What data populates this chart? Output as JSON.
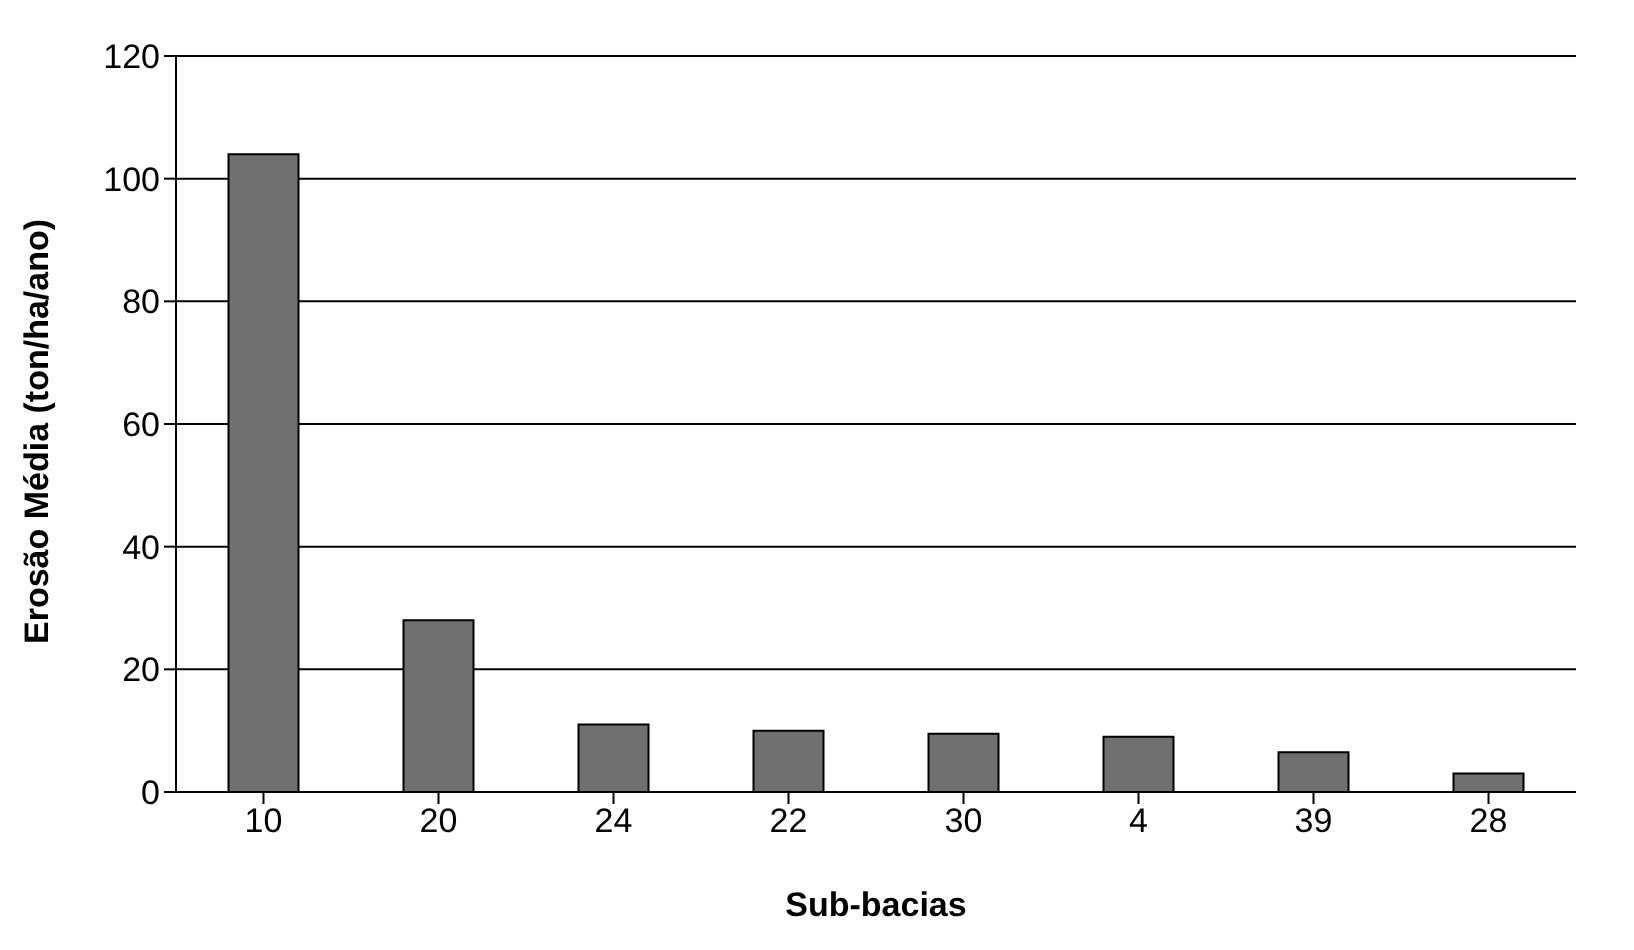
{
  "chart_data": {
    "type": "bar",
    "xlabel": "Sub-bacias",
    "ylabel": "Erosão Média (ton/ha/ano)",
    "categories": [
      "10",
      "20",
      "24",
      "22",
      "30",
      "4",
      "39",
      "28"
    ],
    "values": [
      104,
      28,
      11,
      10,
      9.5,
      9,
      6.5,
      3
    ],
    "color": "#707070",
    "ylim": [
      0,
      120
    ],
    "yticks": [
      0,
      20,
      40,
      60,
      80,
      100,
      120
    ],
    "grid": "y"
  }
}
